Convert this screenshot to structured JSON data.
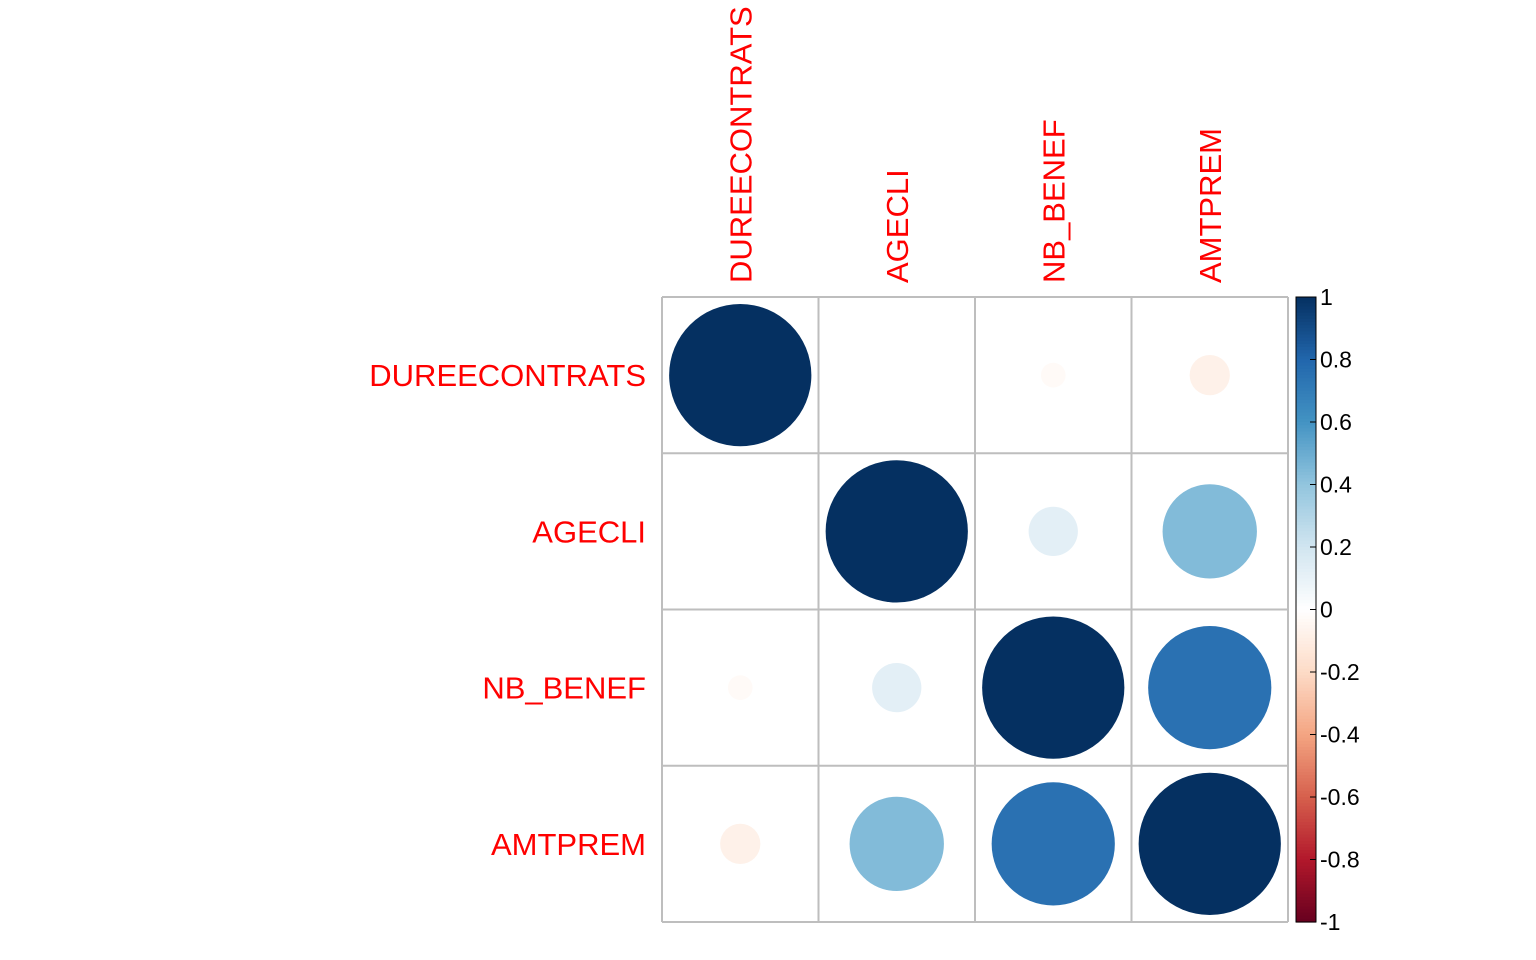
{
  "chart_data": {
    "type": "heatmap",
    "variables": [
      "DUREECONTRATS",
      "AGECLI",
      "NB_BENEF",
      "AMTPREM"
    ],
    "matrix": [
      [
        1.0,
        0.0,
        -0.03,
        -0.08
      ],
      [
        0.0,
        1.0,
        0.12,
        0.44
      ],
      [
        -0.03,
        0.12,
        1.0,
        0.75
      ],
      [
        -0.08,
        0.44,
        0.75,
        1.0
      ]
    ],
    "colorbar": {
      "range": [
        -1,
        1
      ],
      "ticks": [
        "1",
        "0.8",
        "0.6",
        "0.4",
        "0.2",
        "0",
        "-0.2",
        "-0.4",
        "-0.6",
        "-0.8",
        "-1"
      ],
      "tick_values": [
        1,
        0.8,
        0.6,
        0.4,
        0.2,
        0,
        -0.2,
        -0.4,
        -0.6,
        -0.8,
        -1
      ],
      "colors": [
        "#67001F",
        "#B2182B",
        "#D6604D",
        "#F4A582",
        "#FDDBC7",
        "#FFFFFF",
        "#D1E5F0",
        "#92C5DE",
        "#4393C3",
        "#2166AC",
        "#053061"
      ]
    },
    "label_color": "#ff0000",
    "grid": true,
    "legend": "right"
  }
}
